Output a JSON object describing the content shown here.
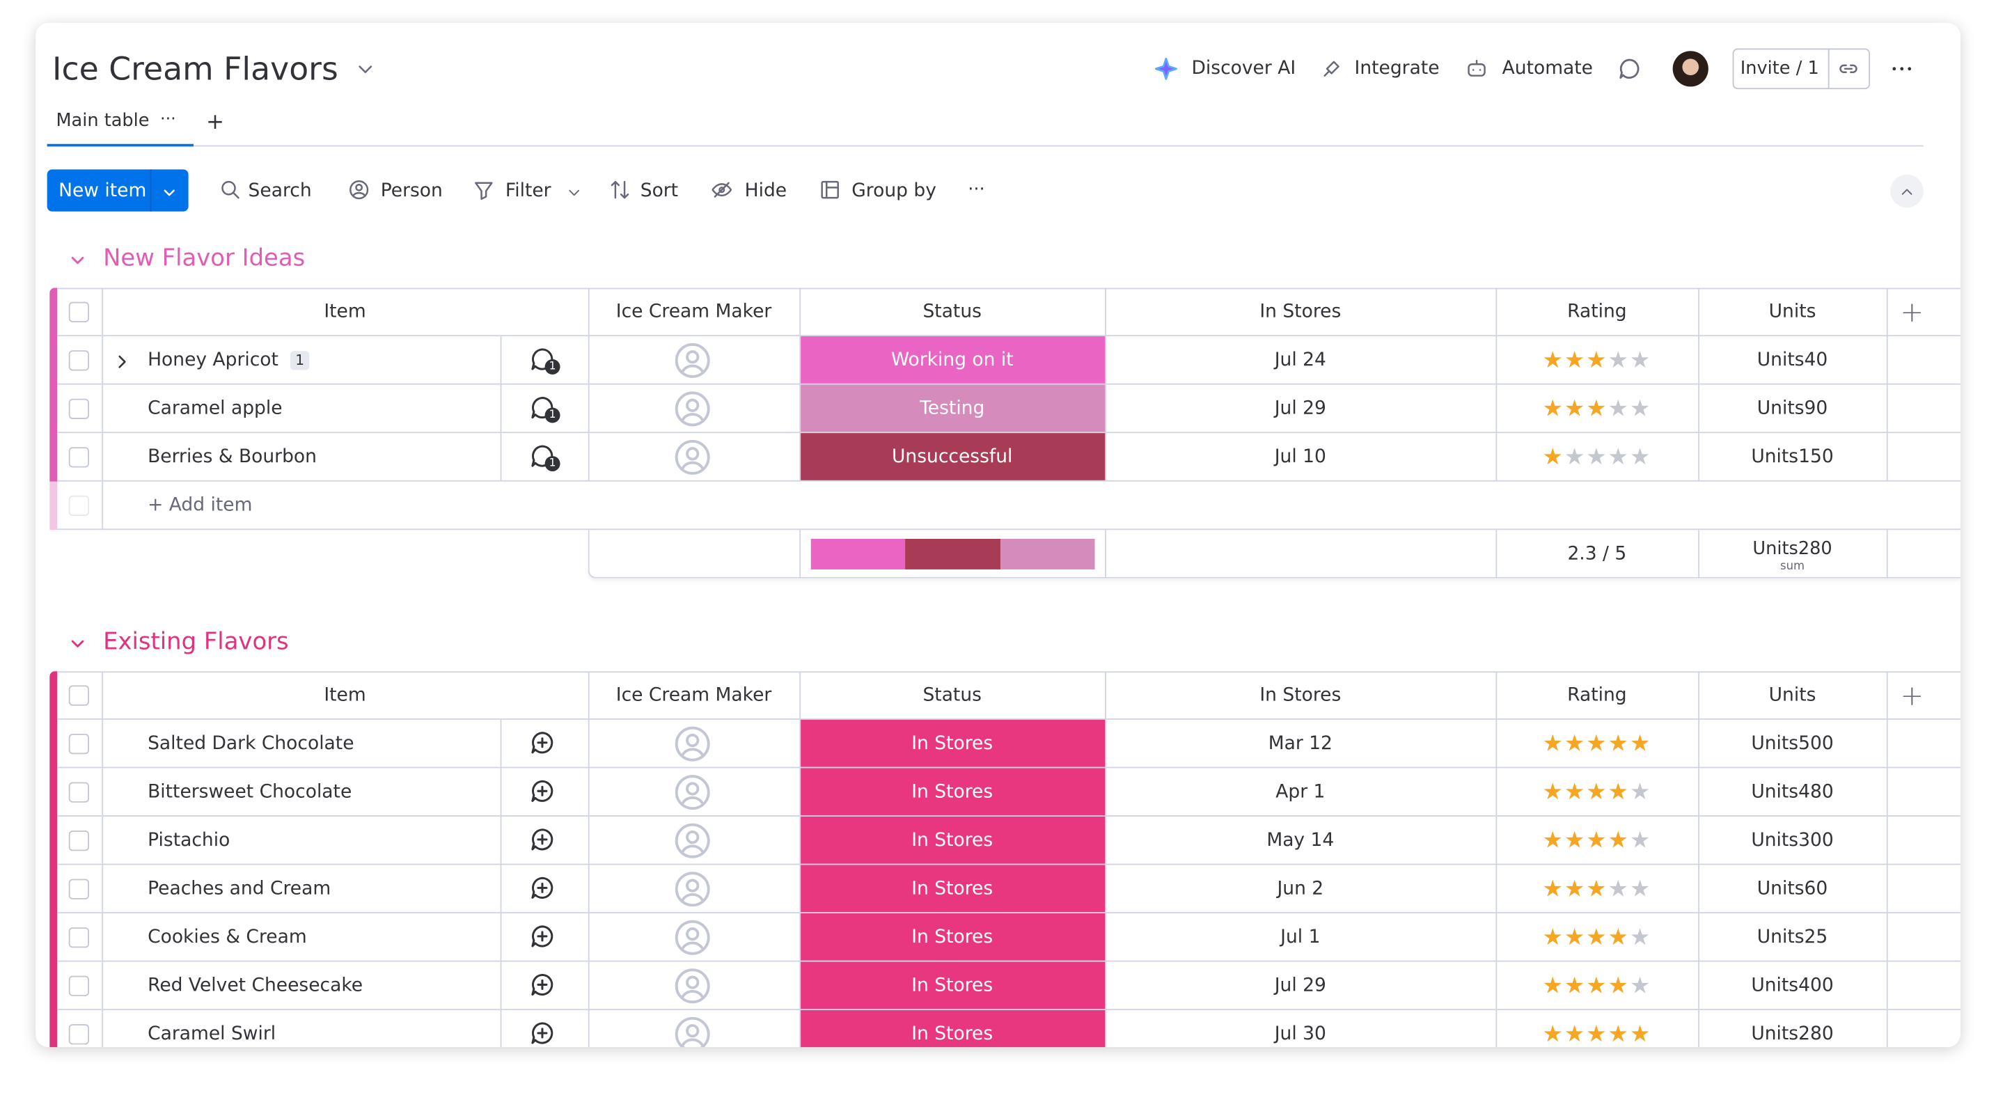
{
  "header": {
    "title": "Ice Cream Flavors",
    "actions": [
      "Discover AI",
      "Integrate",
      "Automate"
    ],
    "invite": "Invite / 1"
  },
  "tabs": {
    "active": "Main table",
    "more": "···",
    "add": "+"
  },
  "toolbar": {
    "new_item": "New item",
    "items": [
      "Search",
      "Person",
      "Filter",
      "Sort",
      "Hide",
      "Group by"
    ],
    "more": "···"
  },
  "columns": [
    "Item",
    "Ice Cream Maker",
    "Status",
    "In Stores",
    "Rating",
    "Units"
  ],
  "add_column": "+",
  "rating_max": 5,
  "groups": [
    {
      "title": "New Flavor Ideas",
      "color": "#e05cb5",
      "rows": [
        {
          "item": "Honey Apricot",
          "subitems": "1",
          "comments": "1",
          "status": "Working on it",
          "status_color": "#ea64c3",
          "date": "Jul 24",
          "rating": 3,
          "units": "Units40"
        },
        {
          "item": "Caramel apple",
          "comments": "1",
          "status": "Testing",
          "status_color": "#d58bbc",
          "date": "Jul 29",
          "rating": 3,
          "units": "Units90"
        },
        {
          "item": "Berries & Bourbon",
          "comments": "1",
          "status": "Unsuccessful",
          "status_color": "#a83b55",
          "date": "Jul 10",
          "rating": 1,
          "units": "Units150"
        }
      ],
      "add_item": "+ Add item",
      "summary": {
        "status_segments": [
          {
            "color": "#ea64c3",
            "count": 1
          },
          {
            "color": "#a83b55",
            "count": 1
          },
          {
            "color": "#d58bbc",
            "count": 1
          }
        ],
        "rating": "2.3 / 5",
        "units": "Units280",
        "units_note": "sum"
      }
    },
    {
      "title": "Existing Flavors",
      "color": "#e0337e",
      "rows": [
        {
          "item": "Salted Dark Chocolate",
          "status": "In Stores",
          "status_color": "#e8367f",
          "date": "Mar 12",
          "rating": 5,
          "units": "Units500"
        },
        {
          "item": "Bittersweet Chocolate",
          "status": "In Stores",
          "status_color": "#e8367f",
          "date": "Apr 1",
          "rating": 4,
          "units": "Units480"
        },
        {
          "item": "Pistachio",
          "status": "In Stores",
          "status_color": "#e8367f",
          "date": "May 14",
          "rating": 4,
          "units": "Units300"
        },
        {
          "item": "Peaches and Cream",
          "status": "In Stores",
          "status_color": "#e8367f",
          "date": "Jun 2",
          "rating": 3,
          "units": "Units60"
        },
        {
          "item": "Cookies & Cream",
          "status": "In Stores",
          "status_color": "#e8367f",
          "date": "Jul 1",
          "rating": 4,
          "units": "Units25"
        },
        {
          "item": "Red Velvet Cheesecake",
          "status": "In Stores",
          "status_color": "#e8367f",
          "date": "Jul 29",
          "rating": 4,
          "units": "Units400"
        },
        {
          "item": "Caramel Swirl",
          "status": "In Stores",
          "status_color": "#e8367f",
          "date": "Jul 30",
          "rating": 5,
          "units": "Units280"
        }
      ]
    }
  ]
}
